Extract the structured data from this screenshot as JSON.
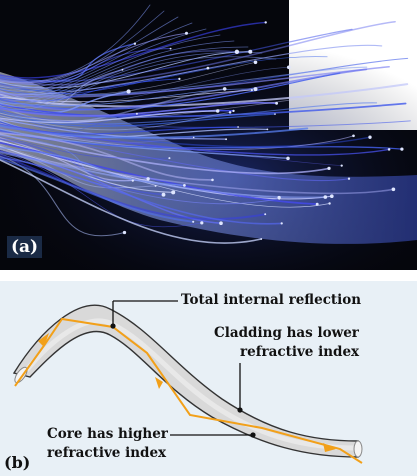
{
  "panel_a": {
    "label": "(a)"
  },
  "panel_b": {
    "label": "(b)",
    "annotations": {
      "tir": "Total internal reflection",
      "cladding_line1": "Cladding has lower",
      "cladding_line2": "refractive index",
      "core_line1": "Core has higher",
      "core_line2": "refractive index"
    }
  },
  "colors": {
    "photo_background": "#05060c",
    "fiber_glow": "#5f7fe8",
    "panel_b_background": "#e8f0f6",
    "fiber_body": "#d9d9d9",
    "fiber_outline": "#333333",
    "light_ray": "#f2a019"
  }
}
